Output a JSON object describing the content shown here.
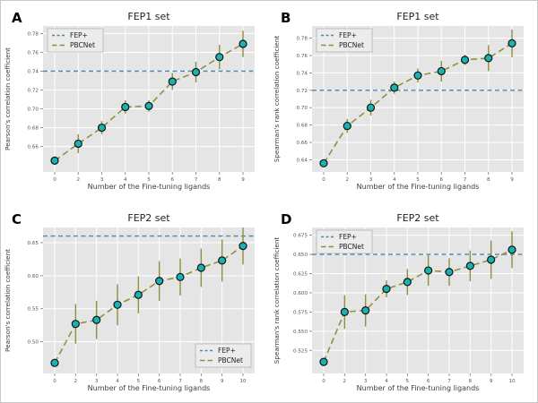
{
  "figure": {
    "background": "#ffffff",
    "plot_background": "#e5e5e5",
    "grid_color": "#ffffff",
    "title_color": "#1f1f1f",
    "axis_label_color": "#3d3d3d",
    "tick_label_color": "#555555",
    "panel_letter_color": "#000000"
  },
  "colors": {
    "fep_line": "#4d86ab",
    "pbcnet_line": "#8f9140",
    "marker_fill": "#17b3b3",
    "marker_edge": "#111111",
    "legend_bg": "#ececec",
    "legend_border": "#b3b3b3"
  },
  "chart_data": [
    {
      "panel": "A",
      "type": "line",
      "title": "FEP1 set",
      "xlabel": "Number of the Fine-tuning ligands",
      "ylabel": "Pearson's correlation coefficient",
      "categories": [
        "0",
        "2",
        "3",
        "4",
        "5",
        "6",
        "7",
        "8",
        "9"
      ],
      "ylim": [
        0.633,
        0.788
      ],
      "yticks": [
        0.66,
        0.68,
        0.7,
        0.72,
        0.74,
        0.76,
        0.78
      ],
      "ytick_labels": [
        "0.66",
        "0.68",
        "0.70",
        "0.72",
        "0.74",
        "0.76",
        "0.78"
      ],
      "grid": true,
      "legend_pos": "top-left",
      "series": [
        {
          "name": "FEP+",
          "style": "hline",
          "value": 0.74
        },
        {
          "name": "PBCNet",
          "style": "dashed-markers",
          "values": [
            0.645,
            0.663,
            0.68,
            0.702,
            0.703,
            0.729,
            0.739,
            0.755,
            0.769
          ],
          "errors": [
            0,
            0.01,
            0.007,
            0.007,
            0.006,
            0.009,
            0.011,
            0.013,
            0.014
          ]
        }
      ]
    },
    {
      "panel": "B",
      "type": "line",
      "title": "FEP1 set",
      "xlabel": "Number of the Fine-tuning ligands",
      "ylabel": "Spearman's rank correlation coefficient",
      "categories": [
        "0",
        "2",
        "3",
        "4",
        "5",
        "6",
        "7",
        "8",
        "9"
      ],
      "ylim": [
        0.626,
        0.794
      ],
      "yticks": [
        0.64,
        0.66,
        0.68,
        0.7,
        0.72,
        0.74,
        0.76,
        0.78
      ],
      "ytick_labels": [
        "0.64",
        "0.66",
        "0.68",
        "0.70",
        "0.72",
        "0.74",
        "0.76",
        "0.78"
      ],
      "grid": true,
      "legend_pos": "top-left",
      "series": [
        {
          "name": "FEP+",
          "style": "hline",
          "value": 0.72
        },
        {
          "name": "PBCNet",
          "style": "dashed-markers",
          "values": [
            0.636,
            0.679,
            0.7,
            0.723,
            0.737,
            0.742,
            0.755,
            0.757,
            0.774
          ],
          "errors": [
            0,
            0.008,
            0.009,
            0.007,
            0.008,
            0.012,
            0.006,
            0.015,
            0.016
          ]
        }
      ]
    },
    {
      "panel": "C",
      "type": "line",
      "title": "FEP2 set",
      "xlabel": "Number of the Fine-tuning ligands",
      "ylabel": "Pearson's correlation coefficient",
      "categories": [
        "0",
        "2",
        "3",
        "4",
        "5",
        "6",
        "7",
        "8",
        "9",
        "10"
      ],
      "ylim": [
        0.452,
        0.673
      ],
      "yticks": [
        0.5,
        0.55,
        0.6,
        0.65
      ],
      "ytick_labels": [
        "0.50",
        "0.55",
        "0.60",
        "0.65"
      ],
      "grid": true,
      "legend_pos": "bottom-right",
      "series": [
        {
          "name": "FEP+",
          "style": "hline",
          "value": 0.66
        },
        {
          "name": "PBCNet",
          "style": "dashed-markers",
          "values": [
            0.468,
            0.527,
            0.533,
            0.556,
            0.571,
            0.592,
            0.598,
            0.612,
            0.623,
            0.645
          ],
          "errors": [
            0,
            0.03,
            0.029,
            0.031,
            0.028,
            0.03,
            0.028,
            0.029,
            0.032,
            0.028
          ]
        }
      ]
    },
    {
      "panel": "D",
      "type": "line",
      "title": "FEP2 set",
      "xlabel": "Number of the Fine-tuning ligands",
      "ylabel": "Spearman's rank correlation coefficient",
      "categories": [
        "0",
        "2",
        "3",
        "4",
        "5",
        "6",
        "7",
        "8",
        "9",
        "10"
      ],
      "ylim": [
        0.495,
        0.685
      ],
      "yticks": [
        0.525,
        0.55,
        0.575,
        0.6,
        0.625,
        0.65,
        0.675
      ],
      "ytick_labels": [
        "0.525",
        "0.550",
        "0.575",
        "0.600",
        "0.625",
        "0.650",
        "0.675"
      ],
      "grid": true,
      "legend_pos": "top-left",
      "series": [
        {
          "name": "FEP+",
          "style": "hline",
          "value": 0.65
        },
        {
          "name": "PBCNet",
          "style": "dashed-markers",
          "values": [
            0.51,
            0.575,
            0.577,
            0.605,
            0.614,
            0.629,
            0.627,
            0.635,
            0.643,
            0.656
          ],
          "errors": [
            0,
            0.022,
            0.021,
            0.011,
            0.017,
            0.02,
            0.018,
            0.02,
            0.025,
            0.024
          ]
        }
      ]
    }
  ]
}
